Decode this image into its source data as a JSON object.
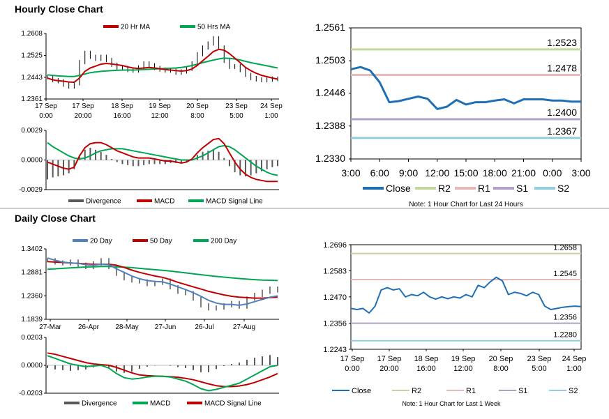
{
  "sections": {
    "hourly_title": "Hourly Close Chart",
    "daily_title": "Daily Close Chart"
  },
  "chart_data": [
    {
      "id": "hourly_price",
      "type": "line",
      "title": "",
      "y_ticks": [
        "1.2608",
        "1.2525",
        "1.2443",
        "1.2361"
      ],
      "ylim": [
        1.2361,
        1.2608
      ],
      "x_ticks": [
        [
          "17 Sep",
          "0:00"
        ],
        [
          "17 Sep",
          "20:00"
        ],
        [
          "18 Sep",
          "16:00"
        ],
        [
          "19 Sep",
          "12:00"
        ],
        [
          "20 Sep",
          "8:00"
        ],
        [
          "23 Sep",
          "5:00"
        ],
        [
          "24 Sep",
          "1:00"
        ]
      ],
      "legend": [
        "20 Hr MA",
        "50 Hrs MA"
      ],
      "colors": {
        "ma1": "#c00000",
        "ma2": "#00a651",
        "price": "#000000"
      },
      "series": [
        {
          "name": "Close",
          "values": [
            1.2443,
            1.2432,
            1.2428,
            1.2415,
            1.2408,
            1.242,
            1.25,
            1.2535,
            1.252,
            1.2512,
            1.252,
            1.2508,
            1.249,
            1.2475,
            1.2478,
            1.247,
            1.2468,
            1.248,
            1.2495,
            1.2488,
            1.2478,
            1.2472,
            1.2468,
            1.247,
            1.246,
            1.2465,
            1.2475,
            1.2495,
            1.253,
            1.2555,
            1.257,
            1.259,
            1.2555,
            1.2505,
            1.2482,
            1.2485,
            1.247,
            1.2452,
            1.244,
            1.2435,
            1.2432,
            1.2434,
            1.2438,
            1.2436
          ]
        },
        {
          "name": "20 Hr MA",
          "values": [
            1.244,
            1.2433,
            1.243,
            1.2428,
            1.2425,
            1.2424,
            1.244,
            1.2465,
            1.2478,
            1.2485,
            1.2492,
            1.2495,
            1.2493,
            1.249,
            1.2487,
            1.2482,
            1.2478,
            1.2476,
            1.2478,
            1.248,
            1.2478,
            1.2475,
            1.2472,
            1.247,
            1.2468,
            1.2466,
            1.2468,
            1.2474,
            1.2488,
            1.2505,
            1.2522,
            1.254,
            1.2548,
            1.2545,
            1.2532,
            1.2515,
            1.2498,
            1.248,
            1.2468,
            1.2458,
            1.245,
            1.2445,
            1.244,
            1.2436
          ]
        },
        {
          "name": "50 Hrs MA",
          "values": [
            1.2452,
            1.245,
            1.2448,
            1.2447,
            1.2446,
            1.2446,
            1.245,
            1.2455,
            1.246,
            1.2463,
            1.2465,
            1.2467,
            1.2468,
            1.2469,
            1.247,
            1.247,
            1.247,
            1.2471,
            1.2472,
            1.2473,
            1.2474,
            1.2475,
            1.2476,
            1.2477,
            1.2478,
            1.248,
            1.2483,
            1.2487,
            1.2492,
            1.2498,
            1.2503,
            1.2508,
            1.2512,
            1.2515,
            1.2514,
            1.2512,
            1.2508,
            1.2503,
            1.2498,
            1.2494,
            1.249,
            1.2486,
            1.2482,
            1.2478
          ]
        }
      ]
    },
    {
      "id": "hourly_macd",
      "type": "line",
      "y_ticks": [
        "0.0029",
        "0.0000",
        "-0.0029"
      ],
      "ylim": [
        -0.0029,
        0.0029
      ],
      "legend": [
        "Divergence",
        "MACD",
        "MACD Signal Line"
      ],
      "colors": {
        "div": "#595959",
        "macd": "#c00000",
        "signal": "#00a651"
      },
      "series": [
        {
          "name": "MACD",
          "values": [
            -0.0002,
            -0.0004,
            -0.0006,
            -0.0008,
            -0.0009,
            -0.0007,
            0.0004,
            0.0012,
            0.0016,
            0.0017,
            0.0017,
            0.0015,
            0.0012,
            0.0009,
            0.0007,
            0.0005,
            0.0003,
            0.0002,
            0.0002,
            0.0002,
            0.0001,
            0.0,
            -0.0001,
            -0.0001,
            -0.0002,
            -0.0003,
            -0.0002,
            0.0001,
            0.0007,
            0.0012,
            0.0016,
            0.002,
            0.0021,
            0.0016,
            0.0007,
            -0.0002,
            -0.0009,
            -0.0014,
            -0.0017,
            -0.0019,
            -0.002,
            -0.0021,
            -0.0021,
            -0.0021
          ]
        },
        {
          "name": "MACD Signal Line",
          "values": [
            0.0017,
            0.0013,
            0.001,
            0.0007,
            0.0004,
            0.0002,
            0.0001,
            0.0002,
            0.0004,
            0.0007,
            0.0009,
            0.001,
            0.0011,
            0.0011,
            0.0011,
            0.001,
            0.0009,
            0.0008,
            0.0007,
            0.0006,
            0.0005,
            0.0004,
            0.0003,
            0.0002,
            0.0001,
            0.0,
            0.0,
            0.0,
            0.0002,
            0.0004,
            0.0007,
            0.001,
            0.0013,
            0.0014,
            0.0013,
            0.001,
            0.0006,
            0.0002,
            -0.0002,
            -0.0006,
            -0.0009,
            -0.0012,
            -0.0014,
            -0.0015
          ]
        }
      ]
    },
    {
      "id": "hourly_24h",
      "type": "line",
      "y_ticks": [
        "1.2561",
        "1.2503",
        "1.2446",
        "1.2388",
        "1.2330"
      ],
      "ylim": [
        1.233,
        1.2561
      ],
      "x_ticks": [
        "3:00",
        "6:00",
        "9:00",
        "12:00",
        "15:00",
        "18:00",
        "21:00",
        "0:00",
        "3:00"
      ],
      "levels": [
        {
          "name": "R2",
          "value": 1.2523,
          "label": "1.2523",
          "color": "#c4d79b"
        },
        {
          "name": "R1",
          "value": 1.2478,
          "label": "1.2478",
          "color": "#e6b8b7"
        },
        {
          "name": "S1",
          "value": 1.24,
          "label": "1.2400",
          "color": "#b1a0c7"
        },
        {
          "name": "S2",
          "value": 1.2367,
          "label": "1.2367",
          "color": "#92cddc"
        }
      ],
      "legend": [
        "Close",
        "R2",
        "R1",
        "S1",
        "S2"
      ],
      "note": "Note: 1 Hour Chart for Last 24 Hours",
      "colors": {
        "close": "#1f6fb5"
      },
      "series": [
        {
          "name": "Close",
          "values": [
            1.2488,
            1.2492,
            1.2486,
            1.2465,
            1.243,
            1.2432,
            1.2436,
            1.244,
            1.2436,
            1.2418,
            1.2422,
            1.2434,
            1.2426,
            1.243,
            1.243,
            1.2433,
            1.2435,
            1.2428,
            1.2435,
            1.2435,
            1.2435,
            1.2433,
            1.2433,
            1.2431,
            1.2431
          ]
        }
      ]
    },
    {
      "id": "daily_price",
      "type": "line",
      "y_ticks": [
        "1.3402",
        "1.2881",
        "1.2360",
        "1.1839"
      ],
      "ylim": [
        1.1839,
        1.3402
      ],
      "x_ticks": [
        "27-Mar",
        "26-Apr",
        "28-May",
        "27-Jun",
        "26-Jul",
        "27-Aug"
      ],
      "legend": [
        "20 Day",
        "50 Day",
        "200 Day"
      ],
      "colors": {
        "d20": "#4f81bd",
        "d50": "#c00000",
        "d200": "#00a651",
        "price": "#000000"
      },
      "series": [
        {
          "name": "Close",
          "values": [
            1.315,
            1.31,
            1.308,
            1.312,
            1.305,
            1.3,
            1.308,
            1.315,
            1.3,
            1.285,
            1.275,
            1.27,
            1.268,
            1.262,
            1.265,
            1.27,
            1.255,
            1.245,
            1.242,
            1.23,
            1.215,
            1.208,
            1.21,
            1.215,
            1.22,
            1.212,
            1.23,
            1.238,
            1.245,
            1.252,
            1.248
          ]
        },
        {
          "name": "20 Day",
          "values": [
            1.32,
            1.315,
            1.311,
            1.309,
            1.308,
            1.305,
            1.304,
            1.306,
            1.305,
            1.296,
            1.288,
            1.28,
            1.274,
            1.27,
            1.268,
            1.267,
            1.262,
            1.256,
            1.25,
            1.243,
            1.235,
            1.226,
            1.22,
            1.217,
            1.217,
            1.215,
            1.218,
            1.223,
            1.228,
            1.233,
            1.236
          ]
        },
        {
          "name": "50 Day",
          "values": [
            1.312,
            1.311,
            1.31,
            1.309,
            1.308,
            1.307,
            1.306,
            1.306,
            1.306,
            1.304,
            1.299,
            1.293,
            1.288,
            1.284,
            1.28,
            1.277,
            1.272,
            1.266,
            1.261,
            1.256,
            1.251,
            1.246,
            1.242,
            1.238,
            1.235,
            1.233,
            1.232,
            1.231,
            1.231,
            1.232,
            1.233
          ]
        },
        {
          "name": "200 Day",
          "values": [
            1.295,
            1.296,
            1.297,
            1.298,
            1.299,
            1.3,
            1.3005,
            1.301,
            1.301,
            1.3005,
            1.2995,
            1.2985,
            1.297,
            1.2955,
            1.294,
            1.2925,
            1.291,
            1.289,
            1.287,
            1.285,
            1.283,
            1.281,
            1.279,
            1.2775,
            1.276,
            1.2745,
            1.273,
            1.272,
            1.271,
            1.2705,
            1.27
          ]
        }
      ]
    },
    {
      "id": "daily_macd",
      "type": "line",
      "y_ticks": [
        "0.0203",
        "0.0000",
        "-0.0203"
      ],
      "ylim": [
        -0.0203,
        0.0203
      ],
      "legend": [
        "Divergence",
        "MACD",
        "MACD Signal Line"
      ],
      "colors": {
        "div": "#595959",
        "macd": "#00a651",
        "signal": "#c00000"
      },
      "series": [
        {
          "name": "MACD",
          "values": [
            0.007,
            0.005,
            0.003,
            0.001,
            0.0,
            -0.001,
            -0.0005,
            0.0,
            -0.002,
            -0.006,
            -0.009,
            -0.01,
            -0.0095,
            -0.0085,
            -0.008,
            -0.008,
            -0.0085,
            -0.01,
            -0.0115,
            -0.014,
            -0.017,
            -0.0185,
            -0.0175,
            -0.016,
            -0.0145,
            -0.013,
            -0.01,
            -0.007,
            -0.004,
            -0.001,
            0.0
          ]
        },
        {
          "name": "MACD Signal Line",
          "values": [
            0.009,
            0.008,
            0.0065,
            0.005,
            0.0035,
            0.002,
            0.001,
            0.0005,
            0.0,
            -0.0015,
            -0.0035,
            -0.0055,
            -0.007,
            -0.0075,
            -0.0078,
            -0.008,
            -0.0082,
            -0.0087,
            -0.0095,
            -0.0105,
            -0.012,
            -0.0135,
            -0.0148,
            -0.0155,
            -0.0155,
            -0.015,
            -0.014,
            -0.0125,
            -0.0105,
            -0.0085,
            -0.006
          ]
        }
      ]
    },
    {
      "id": "daily_week",
      "type": "line",
      "y_ticks": [
        "1.2696",
        "1.2583",
        "1.2470",
        "1.2356",
        "1.2243"
      ],
      "ylim": [
        1.2243,
        1.2696
      ],
      "x_ticks": [
        [
          "17 Sep",
          "0:00"
        ],
        [
          "17 Sep",
          "20:00"
        ],
        [
          "18 Sep",
          "16:00"
        ],
        [
          "19 Sep",
          "12:00"
        ],
        [
          "20 Sep",
          "8:00"
        ],
        [
          "23 Sep",
          "5:00"
        ],
        [
          "24 Sep",
          "1:00"
        ]
      ],
      "levels": [
        {
          "name": "R2",
          "value": 1.2658,
          "label": "1.2658",
          "color": "#c4d79b"
        },
        {
          "name": "R1",
          "value": 1.2545,
          "label": "1.2545",
          "color": "#e6b8b7"
        },
        {
          "name": "S1",
          "value": 1.2356,
          "label": "1.2356",
          "color": "#b1a0c7"
        },
        {
          "name": "S2",
          "value": 1.228,
          "label": "1.2280",
          "color": "#92cddc"
        }
      ],
      "legend": [
        "Close",
        "R2",
        "R1",
        "S1",
        "S2"
      ],
      "note": "Note: 1 Hour Chart for Last 1 Week",
      "colors": {
        "close": "#1f6fb5"
      },
      "series": [
        {
          "name": "Close",
          "values": [
            1.242,
            1.2415,
            1.242,
            1.24,
            1.243,
            1.25,
            1.251,
            1.25,
            1.2505,
            1.247,
            1.248,
            1.2475,
            1.249,
            1.247,
            1.246,
            1.247,
            1.2462,
            1.247,
            1.2465,
            1.248,
            1.247,
            1.252,
            1.251,
            1.2535,
            1.2555,
            1.254,
            1.248,
            1.249,
            1.2485,
            1.2475,
            1.249,
            1.248,
            1.243,
            1.2415,
            1.242,
            1.2425,
            1.2428,
            1.243,
            1.2428
          ]
        }
      ]
    }
  ]
}
